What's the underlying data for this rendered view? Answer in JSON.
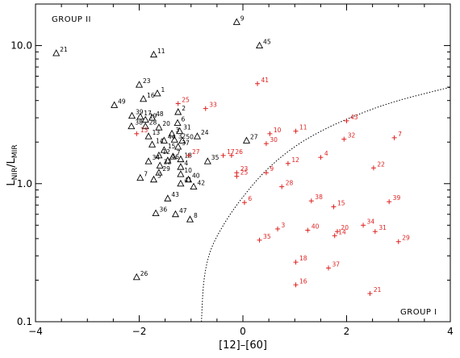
{
  "chart_data": {
    "type": "scatter",
    "xlabel": "[12]–[60]",
    "ylabel_main": "L",
    "ylabel_sub1": "NIR",
    "ylabel_sep": "/L",
    "ylabel_sub2": "MIR",
    "x_range": [
      -4,
      4
    ],
    "y_range": [
      0.1,
      20
    ],
    "y_scale": "log",
    "x_ticks": [
      {
        "value": -4,
        "label": "−4"
      },
      {
        "value": -2,
        "label": "−2"
      },
      {
        "value": 0,
        "label": "0"
      },
      {
        "value": 2,
        "label": "2"
      },
      {
        "value": 4,
        "label": "4"
      }
    ],
    "y_ticks": [
      {
        "value": 10,
        "label": "10.0"
      },
      {
        "value": 1,
        "label": "1.0"
      },
      {
        "value": 0.1,
        "label": "0.1"
      }
    ],
    "annotations": {
      "group2": "GROUP II",
      "group1": "GROUP I"
    },
    "colors": {
      "group2": "#000000",
      "group1": "#e02020"
    },
    "series": [
      {
        "name": "GROUP II",
        "marker": "triangle",
        "points": [
          {
            "label": "9",
            "x": -0.12,
            "y": 14.8
          },
          {
            "label": "45",
            "x": 0.32,
            "y": 10.0
          },
          {
            "label": "21",
            "x": -3.6,
            "y": 8.8
          },
          {
            "label": "11",
            "x": -1.72,
            "y": 8.6
          },
          {
            "label": "23",
            "x": -2.0,
            "y": 5.2
          },
          {
            "label": "1",
            "x": -1.65,
            "y": 4.5
          },
          {
            "label": "16",
            "x": -1.92,
            "y": 4.1
          },
          {
            "label": "49",
            "x": -2.48,
            "y": 3.7
          },
          {
            "label": "2",
            "x": -1.25,
            "y": 3.3
          },
          {
            "label": "39",
            "x": -2.14,
            "y": 3.1
          },
          {
            "label": "17",
            "x": -1.98,
            "y": 3.05
          },
          {
            "label": "48",
            "x": -1.75,
            "y": 3.0
          },
          {
            "label": "19",
            "x": -1.88,
            "y": 2.9
          },
          {
            "label": "6",
            "x": -1.26,
            "y": 2.75
          },
          {
            "label": "28",
            "x": -1.88,
            "y": 2.6
          },
          {
            "label": "38",
            "x": -2.15,
            "y": 2.6
          },
          {
            "label": "20",
            "x": -1.62,
            "y": 2.55
          },
          {
            "label": "31",
            "x": -1.22,
            "y": 2.4
          },
          {
            "label": "3",
            "x": -1.37,
            "y": 2.3
          },
          {
            "label": "13",
            "x": -1.82,
            "y": 2.2
          },
          {
            "label": "24",
            "x": -0.88,
            "y": 2.2
          },
          {
            "label": "44",
            "x": -1.52,
            "y": 2.05
          },
          {
            "label": "32",
            "x": -1.32,
            "y": 2.08
          },
          {
            "label": "50",
            "x": -1.17,
            "y": 2.05
          },
          {
            "label": "27",
            "x": 0.07,
            "y": 2.05
          },
          {
            "label": "14",
            "x": -1.75,
            "y": 1.92
          },
          {
            "label": "37",
            "x": -1.25,
            "y": 1.85
          },
          {
            "label": "15",
            "x": -1.52,
            "y": 1.75
          },
          {
            "label": "12",
            "x": -1.62,
            "y": 1.6
          },
          {
            "label": "7",
            "x": -1.35,
            "y": 1.57
          },
          {
            "label": "34",
            "x": -1.82,
            "y": 1.45
          },
          {
            "label": "46",
            "x": -1.45,
            "y": 1.47
          },
          {
            "label": "18",
            "x": -1.2,
            "y": 1.5
          },
          {
            "label": "35",
            "x": -0.68,
            "y": 1.45
          },
          {
            "label": "22",
            "x": -1.6,
            "y": 1.35
          },
          {
            "label": "4",
            "x": -1.2,
            "y": 1.32
          },
          {
            "label": "29",
            "x": -1.62,
            "y": 1.2
          },
          {
            "label": "10",
            "x": -1.2,
            "y": 1.17
          },
          {
            "label": "7",
            "x": -1.98,
            "y": 1.1
          },
          {
            "label": "5",
            "x": -1.72,
            "y": 1.07
          },
          {
            "label": "40",
            "x": -1.05,
            "y": 1.07
          },
          {
            "label": "41",
            "x": -1.2,
            "y": 1.0
          },
          {
            "label": "42",
            "x": -0.95,
            "y": 0.95
          },
          {
            "label": "43",
            "x": -1.45,
            "y": 0.78
          },
          {
            "label": "36",
            "x": -1.68,
            "y": 0.61
          },
          {
            "label": "47",
            "x": -1.3,
            "y": 0.6
          },
          {
            "label": "8",
            "x": -1.02,
            "y": 0.55
          },
          {
            "label": "26",
            "x": -2.05,
            "y": 0.21
          }
        ]
      },
      {
        "name": "GROUP I",
        "marker": "cross",
        "points": [
          {
            "label": "41",
            "x": 0.28,
            "y": 5.3
          },
          {
            "label": "25",
            "x": -1.25,
            "y": 3.8
          },
          {
            "label": "33",
            "x": -0.72,
            "y": 3.5
          },
          {
            "label": "43",
            "x": 2.0,
            "y": 2.85
          },
          {
            "label": "11",
            "x": 1.02,
            "y": 2.4
          },
          {
            "label": "10",
            "x": 0.52,
            "y": 2.3
          },
          {
            "label": "13",
            "x": -2.05,
            "y": 2.3
          },
          {
            "label": "32",
            "x": 1.95,
            "y": 2.1
          },
          {
            "label": "7",
            "x": 2.92,
            "y": 2.15
          },
          {
            "label": "30",
            "x": 0.45,
            "y": 1.95
          },
          {
            "label": "27",
            "x": -1.05,
            "y": 1.6
          },
          {
            "label": "17",
            "x": -0.38,
            "y": 1.6
          },
          {
            "label": "26",
            "x": -0.22,
            "y": 1.6
          },
          {
            "label": "4",
            "x": 1.5,
            "y": 1.55
          },
          {
            "label": "12",
            "x": 0.87,
            "y": 1.4
          },
          {
            "label": "22",
            "x": 2.52,
            "y": 1.3
          },
          {
            "label": "23",
            "x": -0.12,
            "y": 1.2
          },
          {
            "label": "9",
            "x": 0.45,
            "y": 1.2
          },
          {
            "label": "25",
            "x": -0.12,
            "y": 1.13
          },
          {
            "label": "28",
            "x": 0.75,
            "y": 0.95
          },
          {
            "label": "6",
            "x": 0.03,
            "y": 0.73
          },
          {
            "label": "38",
            "x": 1.32,
            "y": 0.75
          },
          {
            "label": "15",
            "x": 1.75,
            "y": 0.68
          },
          {
            "label": "39",
            "x": 2.82,
            "y": 0.74
          },
          {
            "label": "3",
            "x": 0.67,
            "y": 0.47
          },
          {
            "label": "40",
            "x": 1.25,
            "y": 0.46
          },
          {
            "label": "20",
            "x": 1.82,
            "y": 0.45
          },
          {
            "label": "34",
            "x": 2.32,
            "y": 0.5
          },
          {
            "label": "31",
            "x": 2.55,
            "y": 0.45
          },
          {
            "label": "14",
            "x": 1.77,
            "y": 0.42
          },
          {
            "label": "35",
            "x": 0.32,
            "y": 0.39
          },
          {
            "label": "29",
            "x": 3.0,
            "y": 0.38
          },
          {
            "label": "18",
            "x": 1.02,
            "y": 0.27
          },
          {
            "label": "37",
            "x": 1.65,
            "y": 0.245
          },
          {
            "label": "16",
            "x": 1.02,
            "y": 0.185
          },
          {
            "label": "21",
            "x": 2.45,
            "y": 0.16
          }
        ]
      }
    ],
    "divider": {
      "style": "dotted",
      "points": [
        [
          -0.8,
          0.1
        ],
        [
          -0.75,
          0.2
        ],
        [
          -0.62,
          0.33
        ],
        [
          -0.35,
          0.52
        ],
        [
          0.0,
          0.8
        ],
        [
          0.45,
          1.25
        ],
        [
          1.0,
          1.85
        ],
        [
          1.6,
          2.5
        ],
        [
          2.3,
          3.25
        ],
        [
          3.0,
          4.0
        ],
        [
          4.0,
          5.0
        ]
      ]
    }
  }
}
